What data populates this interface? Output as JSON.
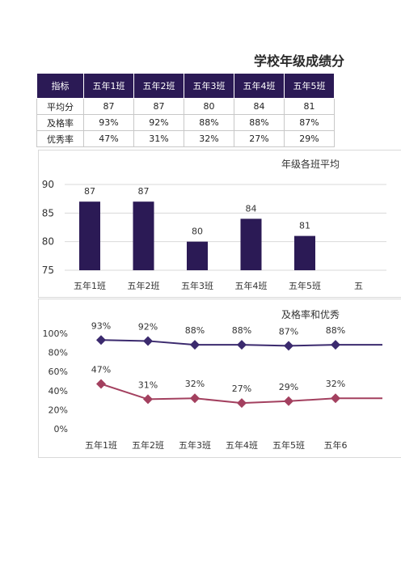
{
  "title": "学校年级成绩分",
  "table": {
    "headers": [
      "指标",
      "五年1班",
      "五年2班",
      "五年3班",
      "五年4班",
      "五年5班"
    ],
    "rows": [
      {
        "label": "平均分",
        "cells": [
          "87",
          "87",
          "80",
          "84",
          "81"
        ]
      },
      {
        "label": "及格率",
        "cells": [
          "93%",
          "92%",
          "88%",
          "88%",
          "87%"
        ]
      },
      {
        "label": "优秀率",
        "cells": [
          "47%",
          "31%",
          "32%",
          "27%",
          "29%"
        ]
      }
    ]
  },
  "colors": {
    "header_bg": "#2b1a55",
    "bar": "#2b1a55",
    "pass_line": "#3b2a6e",
    "excellent_line": "#a3405f"
  },
  "chart_data": [
    {
      "type": "bar",
      "title": "年级各班平均",
      "categories": [
        "五年1班",
        "五年2班",
        "五年3班",
        "五年4班",
        "五年5班",
        "五"
      ],
      "values": [
        87,
        87,
        80,
        84,
        81,
        null
      ],
      "data_labels": [
        "87",
        "87",
        "80",
        "84",
        "81",
        ""
      ],
      "ylim": [
        75,
        90
      ],
      "yticks": [
        75,
        80,
        85,
        90
      ],
      "grid": true
    },
    {
      "type": "line",
      "title": "及格率和优秀",
      "categories": [
        "五年1班",
        "五年2班",
        "五年3班",
        "五年4班",
        "五年5班",
        "五年6"
      ],
      "ylim": [
        0,
        100
      ],
      "yticks": [
        "0%",
        "20%",
        "40%",
        "60%",
        "80%",
        "100%"
      ],
      "grid": false,
      "series": [
        {
          "values": [
            93,
            92,
            88,
            88,
            87,
            88
          ],
          "labels": [
            "93%",
            "92%",
            "88%",
            "88%",
            "87%",
            "88%"
          ],
          "color": "#3b2a6e"
        },
        {
          "values": [
            47,
            31,
            32,
            27,
            29,
            32
          ],
          "labels": [
            "47%",
            "31%",
            "32%",
            "27%",
            "29%",
            "32%"
          ],
          "color": "#a3405f"
        }
      ]
    }
  ]
}
